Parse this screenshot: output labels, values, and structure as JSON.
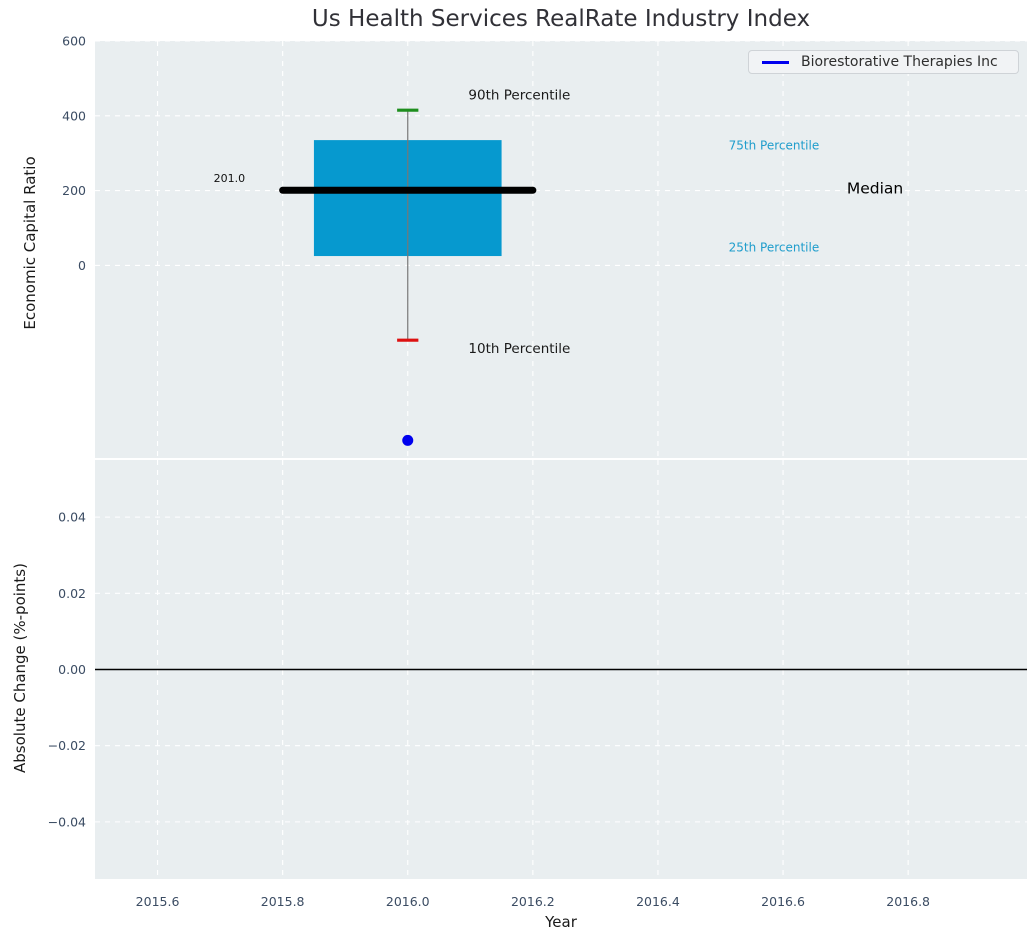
{
  "title": "Us Health Services RealRate Industry Index",
  "legend": {
    "label": "Biorestorative Therapies Inc",
    "line_color": "#0000ee"
  },
  "x_axis": {
    "label": "Year",
    "xlim": [
      2015.5,
      2016.99
    ],
    "ticks": [
      2015.6,
      2015.8,
      2016.0,
      2016.2,
      2016.4,
      2016.6,
      2016.8
    ],
    "tick_labels": [
      "2015.6",
      "2015.8",
      "2016.0",
      "2016.2",
      "2016.4",
      "2016.6",
      "2016.8"
    ]
  },
  "colors": {
    "figure_bg": "#ffffff",
    "axes_bg": "#e9eef0",
    "grid": "#ffffff",
    "tick_label": "#3b4c63",
    "zero_line": "#000000"
  },
  "chart_data": [
    {
      "type": "boxplot",
      "title": "Us Health Services RealRate Industry Index",
      "ylabel": "Economic Capital Ratio",
      "ylim": [
        -515,
        600
      ],
      "yticks": [
        0,
        200,
        400,
        600
      ],
      "ytick_labels": [
        "0",
        "200",
        "400",
        "600"
      ],
      "grid": true,
      "legend_position": "upper right",
      "box": {
        "x": 2016.0,
        "p10": -200,
        "p25": 25,
        "median": 201,
        "p75": 335,
        "p90": 415,
        "median_label": "201.0",
        "box_half_width": 0.15,
        "median_half_width": 0.2,
        "cap_half_width": 0.017,
        "box_fill": "#0699cf",
        "median_color": "#000000",
        "whisker_color": "#777777",
        "p90_cap_color": "#1e8e1e",
        "p10_cap_color": "#dd1111"
      },
      "point": {
        "series": "Biorestorative Therapies Inc",
        "x": 2016.0,
        "y": -468,
        "color": "#0000ee",
        "radius": 5.5
      },
      "annotations": [
        {
          "text": "201.0",
          "x": 2015.74,
          "y": 234,
          "anchor": "end",
          "size": 11,
          "color": "#111111"
        },
        {
          "text": "90th Percentile",
          "x": 2016.097,
          "y": 456,
          "anchor": "start",
          "size": 13.5,
          "color": "#1a1a1a"
        },
        {
          "text": "10th Percentile",
          "x": 2016.097,
          "y": -221,
          "anchor": "start",
          "size": 13.5,
          "color": "#1a1a1a"
        },
        {
          "text": "75th Percentile",
          "x": 2016.513,
          "y": 322,
          "anchor": "start",
          "size": 12,
          "color": "#1f9dcc"
        },
        {
          "text": "25th Percentile",
          "x": 2016.513,
          "y": 49,
          "anchor": "start",
          "size": 12,
          "color": "#1f9dcc"
        },
        {
          "text": "Median",
          "x": 2016.702,
          "y": 207,
          "anchor": "start",
          "size": 15.5,
          "color": "#000000"
        }
      ]
    },
    {
      "type": "line",
      "ylabel": "Absolute Change (%-points)",
      "ylim": [
        -0.055,
        0.055
      ],
      "yticks": [
        0.04,
        0.02,
        0.0,
        -0.02,
        -0.04
      ],
      "ytick_labels": [
        "0.04",
        "0.02",
        "0.00",
        "−0.02",
        "−0.04"
      ],
      "grid": true,
      "zero_line": true,
      "series": []
    }
  ]
}
